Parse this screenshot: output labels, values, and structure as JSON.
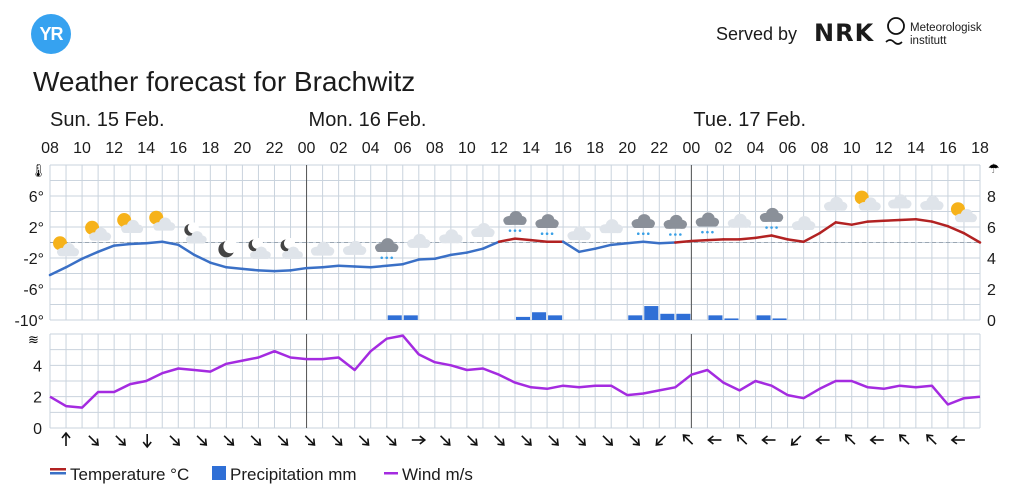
{
  "header": {
    "logo_text": "YR",
    "served_by": "Served by",
    "nrk": "NRK",
    "met_line1": "Meteorologisk",
    "met_line2": "institutt",
    "title": "Weather forecast for Brachwitz"
  },
  "legend": {
    "temperature": "Temperature °C",
    "precipitation": "Precipitation mm",
    "wind": "Wind m/s"
  },
  "colors": {
    "temp_warm": "#b22222",
    "temp_cold": "#3a70c6",
    "precip": "#2f6fd6",
    "wind": "#a42be0",
    "grid": "#c9d3dd"
  },
  "chart_data": {
    "type": "line",
    "days": [
      {
        "label": "Sun. 15 Feb.",
        "start_index": 0
      },
      {
        "label": "Mon. 16 Feb.",
        "start_index": 16
      },
      {
        "label": "Tue. 17 Feb.",
        "start_index": 40
      }
    ],
    "hour_labels": [
      "08",
      "10",
      "12",
      "14",
      "16",
      "18",
      "20",
      "22",
      "00",
      "02",
      "04",
      "06",
      "08",
      "10",
      "12",
      "14",
      "16",
      "18",
      "20",
      "22",
      "00",
      "02",
      "04",
      "06",
      "08",
      "10",
      "12",
      "14",
      "16",
      "18"
    ],
    "temperature": {
      "name": "Temperature °C",
      "axis_ticks": [
        "6°",
        "2°",
        "-2°",
        "-6°",
        "-10°"
      ],
      "ylim": [
        -10,
        10
      ],
      "x": [
        0,
        1,
        2,
        3,
        4,
        5,
        6,
        7,
        8,
        9,
        10,
        11,
        12,
        13,
        14,
        15,
        16,
        17,
        18,
        19,
        20,
        21,
        22,
        23,
        24,
        25,
        26,
        27,
        28,
        29,
        30,
        31,
        32,
        33,
        34,
        35,
        36,
        37,
        38,
        39,
        40,
        41,
        42,
        43,
        44,
        45,
        46,
        47,
        48,
        49,
        50,
        51,
        52,
        53,
        54,
        55,
        56,
        57,
        58
      ],
      "values": [
        -4.2,
        -3.2,
        -2.1,
        -1.2,
        -0.4,
        -0.2,
        -0.1,
        0.1,
        -0.3,
        -1.6,
        -2.6,
        -3.2,
        -3.4,
        -3.6,
        -3.7,
        -3.6,
        -3.3,
        -3.2,
        -3.0,
        -3.1,
        -3.2,
        -3.0,
        -2.8,
        -2.2,
        -2.1,
        -1.6,
        -1.3,
        -0.8,
        0.1,
        0.5,
        0.3,
        0.1,
        0.1,
        -1.2,
        -0.8,
        -0.3,
        -0.1,
        0.1,
        -0.1,
        0.0,
        0.2,
        0.3,
        0.4,
        0.4,
        0.6,
        0.9,
        0.4,
        0.1,
        1.2,
        2.6,
        2.3,
        2.7,
        2.8,
        2.9,
        3.0,
        2.7,
        2.1,
        1.2,
        0.0
      ]
    },
    "precipitation": {
      "name": "Precipitation mm",
      "axis_ticks": [
        "8",
        "6",
        "4",
        "2",
        "0"
      ],
      "ylim": [
        0,
        10
      ],
      "x": [
        21,
        22,
        29,
        30,
        31,
        36,
        37,
        38,
        39,
        41,
        42,
        44,
        45
      ],
      "values": [
        0.3,
        0.3,
        0.2,
        0.5,
        0.3,
        0.3,
        0.9,
        0.4,
        0.4,
        0.3,
        0.1,
        0.3,
        0.1
      ]
    },
    "wind": {
      "name": "Wind m/s",
      "axis_ticks": [
        "4",
        "2",
        "0"
      ],
      "ylim": [
        0,
        6
      ],
      "x": [
        0,
        1,
        2,
        3,
        4,
        5,
        6,
        7,
        8,
        9,
        10,
        11,
        12,
        13,
        14,
        15,
        16,
        17,
        18,
        19,
        20,
        21,
        22,
        23,
        24,
        25,
        26,
        27,
        28,
        29,
        30,
        31,
        32,
        33,
        34,
        35,
        36,
        37,
        38,
        39,
        40,
        41,
        42,
        43,
        44,
        45,
        46,
        47,
        48,
        49,
        50,
        51,
        52,
        53,
        54,
        55,
        56,
        57,
        58
      ],
      "values": [
        2.0,
        1.4,
        1.3,
        2.3,
        2.3,
        2.8,
        3.0,
        3.5,
        3.8,
        3.7,
        3.6,
        4.1,
        4.3,
        4.5,
        4.9,
        4.5,
        4.4,
        4.4,
        4.5,
        3.7,
        4.9,
        5.7,
        5.9,
        4.7,
        4.2,
        4.0,
        3.7,
        3.8,
        3.4,
        2.9,
        2.6,
        2.5,
        2.7,
        2.6,
        2.7,
        2.7,
        2.1,
        2.2,
        2.4,
        2.6,
        3.4,
        3.7,
        2.9,
        2.4,
        3.0,
        2.7,
        2.1,
        1.9,
        2.5,
        3.0,
        3.0,
        2.6,
        2.5,
        2.7,
        2.6,
        2.7,
        1.5,
        1.9,
        2.0
      ]
    },
    "symbols": [
      "partly-sunny",
      "partly-sunny",
      "partly-sunny",
      "partly-sunny",
      "night-partly-cloudy",
      "night-clear",
      "night-partly-cloudy",
      "night-partly-cloudy",
      "cloudy",
      "cloudy",
      "cloudy-light-snow",
      "cloudy",
      "cloudy",
      "cloudy",
      "cloudy-light-snow",
      "cloudy-light-snow",
      "cloudy",
      "cloudy",
      "cloudy-light-snow",
      "cloudy-light-snow",
      "cloudy-light-snow",
      "cloudy",
      "cloudy-light-snow",
      "cloudy",
      "cloudy",
      "partly-sunny",
      "cloudy",
      "cloudy",
      "partly-sunny"
    ],
    "wind_directions_deg": [
      180,
      315,
      315,
      0,
      315,
      315,
      315,
      315,
      315,
      315,
      315,
      315,
      315,
      270,
      315,
      315,
      315,
      315,
      315,
      315,
      315,
      315,
      45,
      135,
      90,
      135,
      90,
      45,
      90,
      135,
      90,
      135,
      135,
      90
    ],
    "grid": true
  }
}
